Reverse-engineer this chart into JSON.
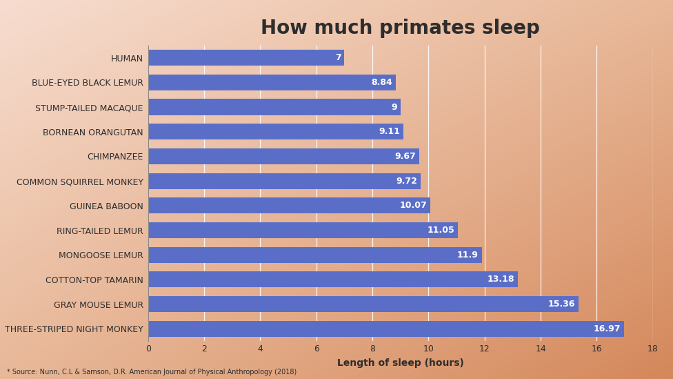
{
  "title": "How much primates sleep",
  "xlabel": "Length of sleep (hours)",
  "source_text": "* Source: Nunn, C.L & Samson, D.R. American Journal of Physical Anthropology (2018)",
  "categories": [
    "THREE-STRIPED NIGHT MONKEY",
    "GRAY MOUSE LEMUR",
    "COTTON-TOP TAMARIN",
    "MONGOOSE LEMUR",
    "RING-TAILED LEMUR",
    "GUINEA BABOON",
    "COMMON SQUIRREL MONKEY",
    "CHIMPANZEE",
    "BORNEAN ORANGUTAN",
    "STUMP-TAILED MACAQUE",
    "BLUE-EYED BLACK LEMUR",
    "HUMAN"
  ],
  "values": [
    16.97,
    15.36,
    13.18,
    11.9,
    11.05,
    10.07,
    9.72,
    9.67,
    9.11,
    9.0,
    8.84,
    7.0
  ],
  "bar_color": "#5B6EC7",
  "label_color": "#FFFFFF",
  "title_color": "#2d2d2d",
  "axis_label_color": "#2d2d2d",
  "tick_label_color": "#2d2d2d",
  "source_color": "#2d2d2d",
  "xlim": [
    0,
    18
  ],
  "xticks": [
    0,
    2,
    4,
    6,
    8,
    10,
    12,
    14,
    16,
    18
  ],
  "bg_tl": "#f7ddd0",
  "bg_tr": "#e8b898",
  "bg_bl": "#e8b898",
  "bg_br": "#d4875a",
  "bar_height": 0.65,
  "title_fontsize": 20,
  "label_fontsize": 9,
  "tick_fontsize": 9,
  "xlabel_fontsize": 10,
  "source_fontsize": 7,
  "value_fontsize": 9
}
